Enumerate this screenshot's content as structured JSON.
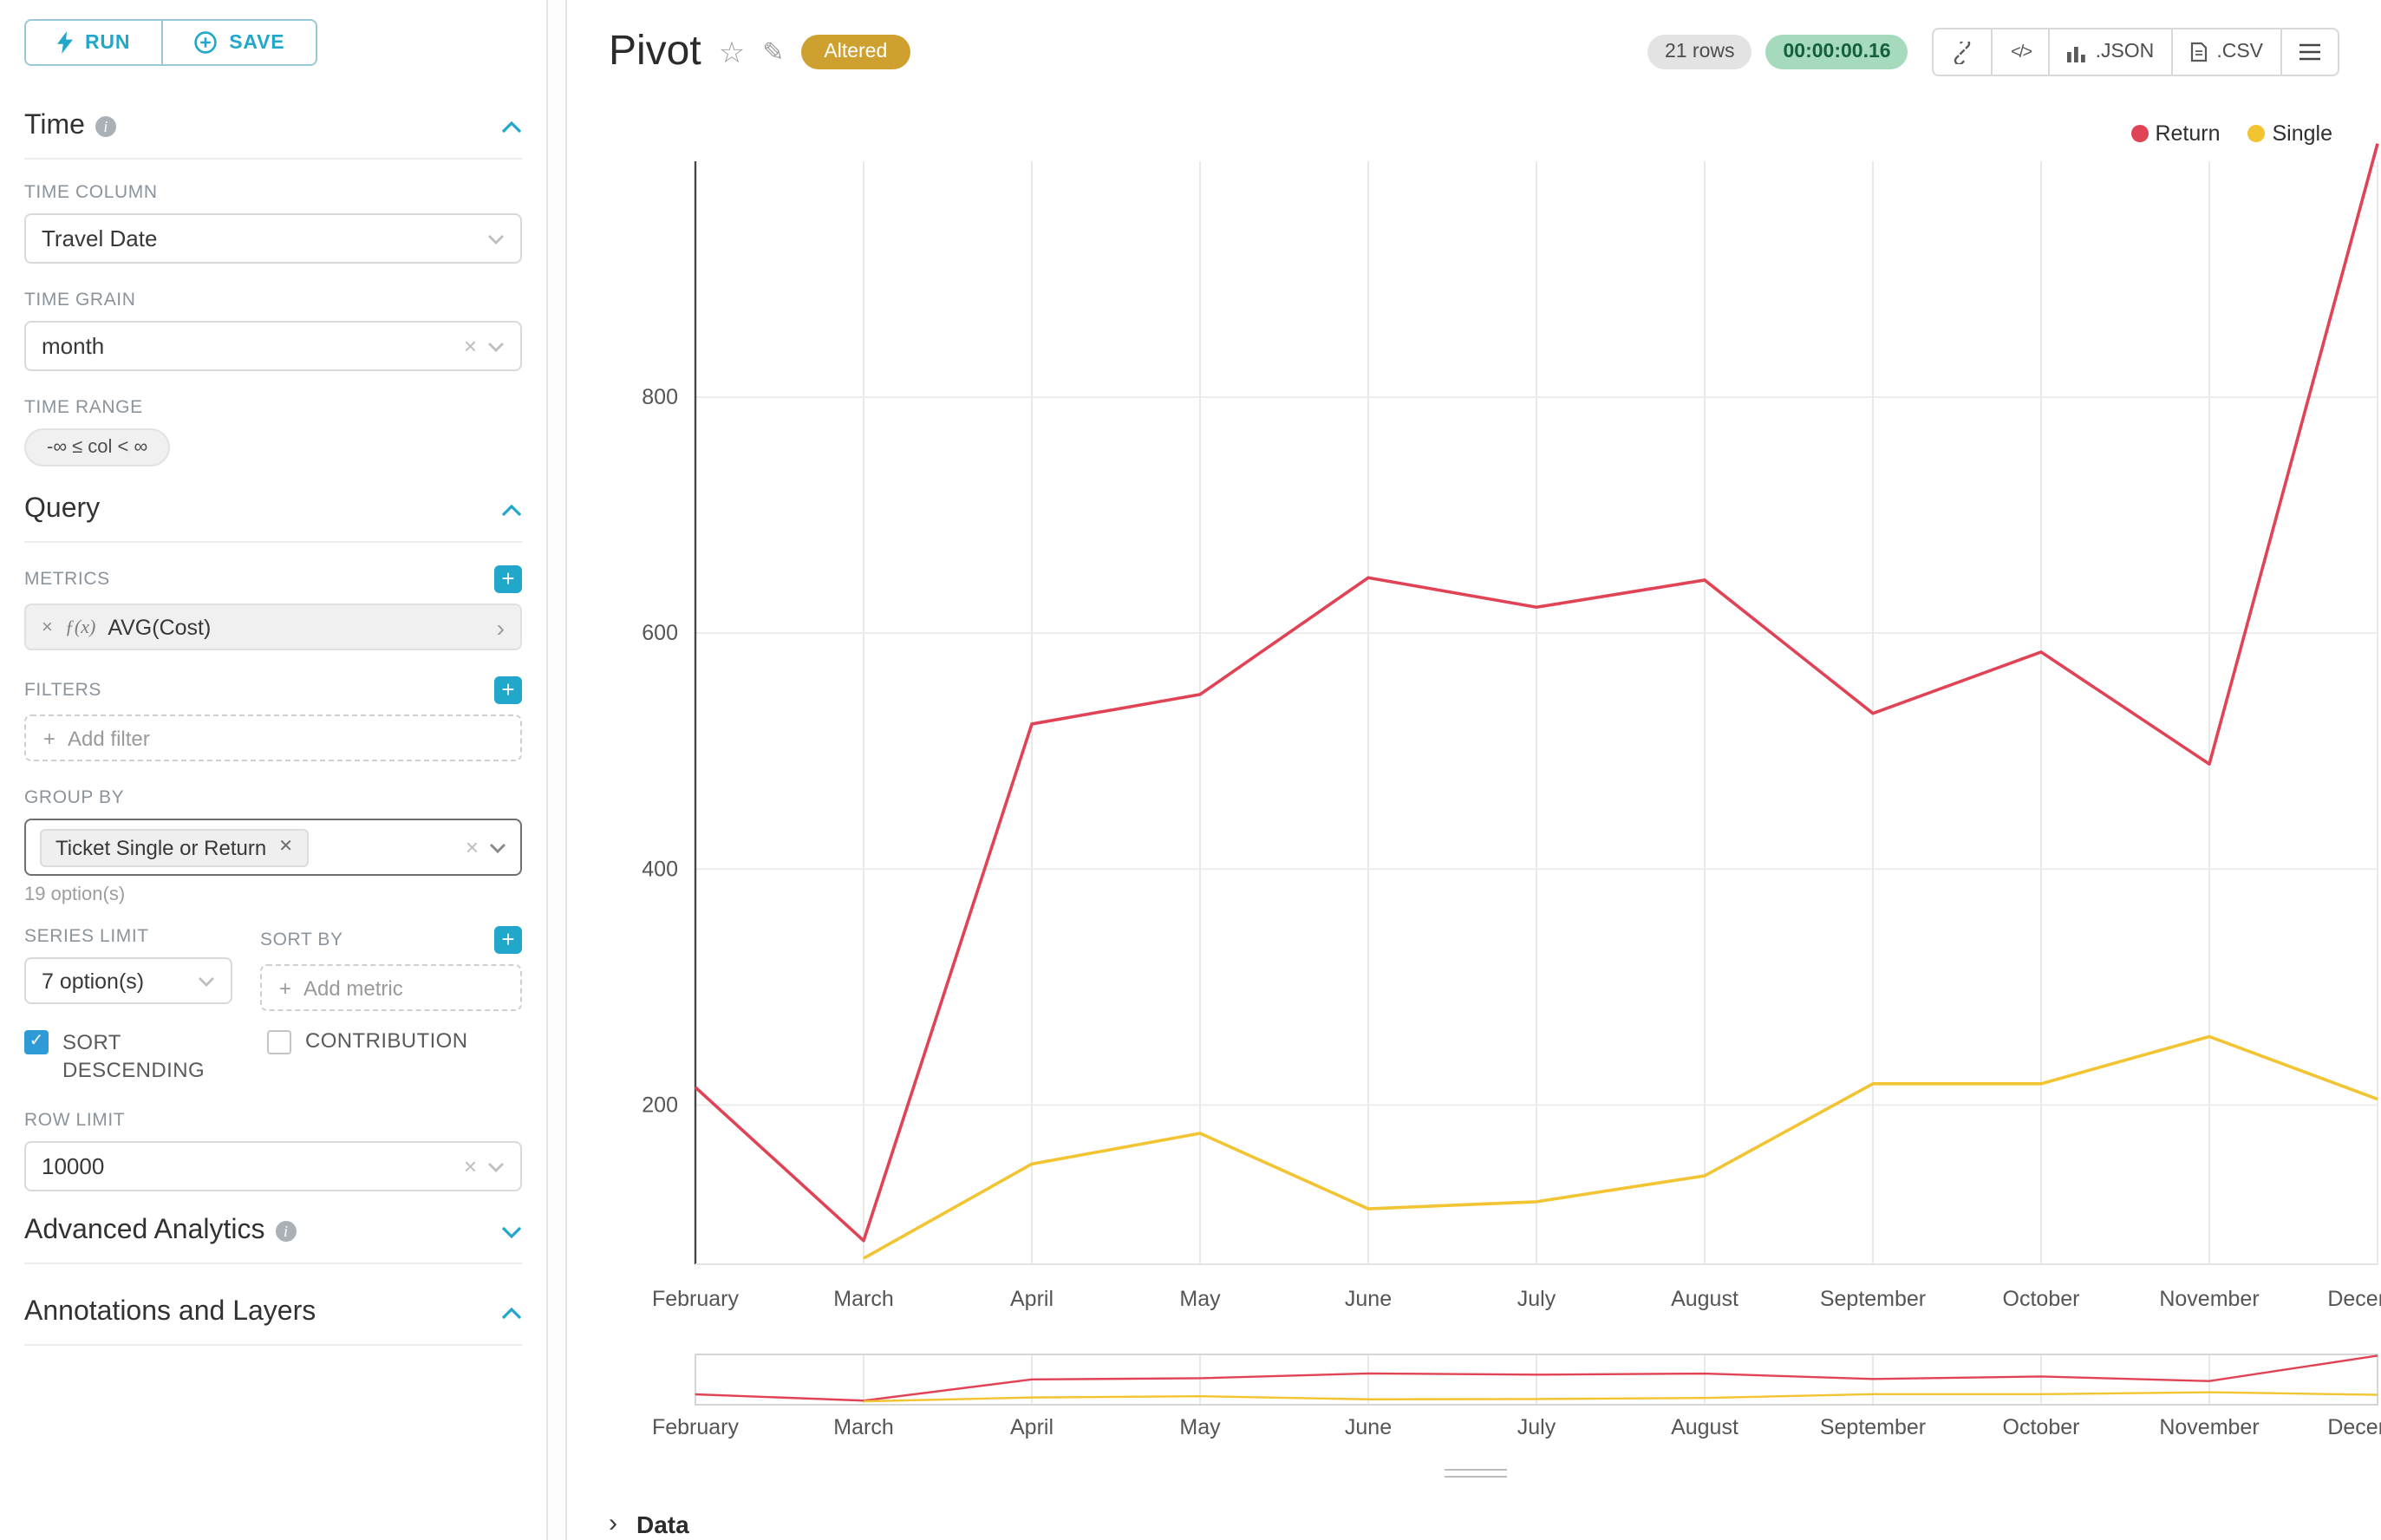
{
  "colors": {
    "accent": "#20a7c9",
    "altered_badge": "#cda02f",
    "timer_bg": "#a6dabd",
    "timer_text": "#14603c"
  },
  "sidebar": {
    "run_label": "RUN",
    "save_label": "SAVE",
    "time": {
      "title": "Time",
      "time_column_label": "TIME COLUMN",
      "time_column_value": "Travel Date",
      "time_grain_label": "TIME GRAIN",
      "time_grain_value": "month",
      "time_range_label": "TIME RANGE",
      "time_range_value": "-∞ ≤ col < ∞"
    },
    "query": {
      "title": "Query",
      "metrics_label": "METRICS",
      "metric_fx": "ƒ(x)",
      "metric_value": "AVG(Cost)",
      "filters_label": "FILTERS",
      "add_filter_placeholder": "Add filter",
      "group_by_label": "GROUP BY",
      "group_by_token": "Ticket Single or Return",
      "group_by_hint": "19 option(s)",
      "series_limit_label": "SERIES LIMIT",
      "series_limit_value": "7 option(s)",
      "sort_by_label": "SORT BY",
      "add_metric_placeholder": "Add metric",
      "sort_descending_label": "SORT DESCENDING",
      "sort_descending_checked": true,
      "contribution_label": "CONTRIBUTION",
      "contribution_checked": false,
      "row_limit_label": "ROW LIMIT",
      "row_limit_value": "10000"
    },
    "advanced_analytics_title": "Advanced Analytics",
    "annotations_title": "Annotations and Layers"
  },
  "header": {
    "title": "Pivot",
    "altered_badge": "Altered",
    "row_count": "21 rows",
    "timer": "00:00:00.16",
    "json_label": ".JSON",
    "csv_label": ".CSV"
  },
  "chart_data": {
    "type": "line",
    "x": [
      "February",
      "March",
      "April",
      "May",
      "June",
      "July",
      "August",
      "September",
      "October",
      "November",
      "December"
    ],
    "series": [
      {
        "name": "Return",
        "color": "#e04355",
        "values": [
          215,
          85,
          523,
          548,
          647,
          622,
          645,
          532,
          584,
          489,
          1015
        ]
      },
      {
        "name": "Single",
        "color": "#f2c431",
        "values": [
          null,
          70,
          150,
          176,
          112,
          118,
          140,
          218,
          218,
          258,
          205
        ]
      }
    ],
    "title": "",
    "xlabel": "",
    "ylabel": "",
    "yticks": [
      200,
      400,
      600,
      800
    ],
    "ylim": [
      65,
      1000
    ],
    "mini_ylim": [
      0,
      1040
    ],
    "grid": true,
    "legend_position": "top-right"
  },
  "data_panel_label": "Data"
}
